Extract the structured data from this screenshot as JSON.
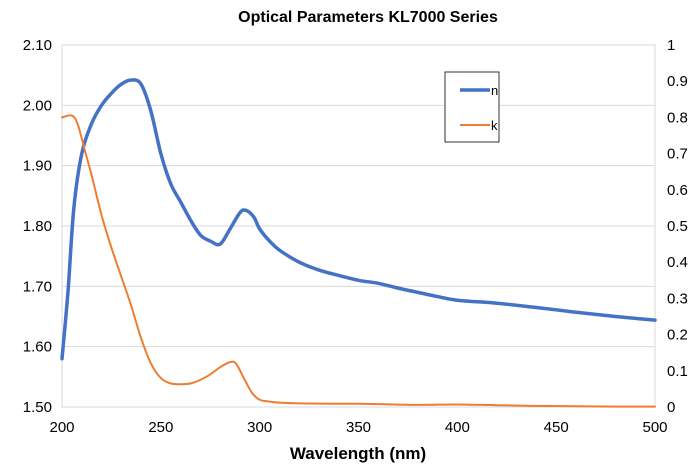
{
  "chart_data": {
    "type": "line",
    "title": "Optical Parameters  KL7000 Series",
    "xlabel": "Wavelength (nm)",
    "ylabel": "",
    "y2label": "",
    "xlim": [
      200,
      500
    ],
    "ylim": [
      1.5,
      2.1
    ],
    "y2lim": [
      0,
      1
    ],
    "x_ticks": [
      200,
      250,
      300,
      350,
      400,
      450,
      500
    ],
    "y_ticks": [
      "1.50",
      "1.60",
      "1.70",
      "1.80",
      "1.90",
      "2.00",
      "2.10"
    ],
    "y2_ticks": [
      "0",
      "0.1",
      "0.2",
      "0.3",
      "0.4",
      "0.5",
      "0.6",
      "0.7",
      "0.8",
      "0.9",
      "1"
    ],
    "grid": "horizontal",
    "legend_position": "top-right",
    "series": [
      {
        "name": "n",
        "axis": "left",
        "color": "#4472C4",
        "points": [
          [
            200,
            1.58
          ],
          [
            203,
            1.69
          ],
          [
            206,
            1.83
          ],
          [
            210,
            1.92
          ],
          [
            215,
            1.97
          ],
          [
            220,
            2.0
          ],
          [
            225,
            2.02
          ],
          [
            230,
            2.035
          ],
          [
            235,
            2.042
          ],
          [
            240,
            2.035
          ],
          [
            245,
            1.99
          ],
          [
            250,
            1.92
          ],
          [
            255,
            1.87
          ],
          [
            260,
            1.84
          ],
          [
            265,
            1.81
          ],
          [
            270,
            1.785
          ],
          [
            275,
            1.775
          ],
          [
            280,
            1.77
          ],
          [
            285,
            1.795
          ],
          [
            290,
            1.822
          ],
          [
            293,
            1.826
          ],
          [
            297,
            1.815
          ],
          [
            300,
            1.795
          ],
          [
            305,
            1.775
          ],
          [
            310,
            1.76
          ],
          [
            320,
            1.74
          ],
          [
            330,
            1.727
          ],
          [
            340,
            1.718
          ],
          [
            350,
            1.71
          ],
          [
            360,
            1.705
          ],
          [
            370,
            1.697
          ],
          [
            380,
            1.69
          ],
          [
            390,
            1.683
          ],
          [
            400,
            1.677
          ],
          [
            420,
            1.672
          ],
          [
            440,
            1.665
          ],
          [
            460,
            1.657
          ],
          [
            480,
            1.65
          ],
          [
            500,
            1.644
          ]
        ]
      },
      {
        "name": "k",
        "axis": "right",
        "color": "#ED7D31",
        "points": [
          [
            200,
            0.8
          ],
          [
            205,
            0.805
          ],
          [
            208,
            0.78
          ],
          [
            212,
            0.7
          ],
          [
            215,
            0.64
          ],
          [
            220,
            0.53
          ],
          [
            225,
            0.44
          ],
          [
            230,
            0.36
          ],
          [
            235,
            0.28
          ],
          [
            240,
            0.19
          ],
          [
            245,
            0.12
          ],
          [
            250,
            0.08
          ],
          [
            255,
            0.065
          ],
          [
            260,
            0.063
          ],
          [
            265,
            0.065
          ],
          [
            270,
            0.075
          ],
          [
            275,
            0.09
          ],
          [
            280,
            0.11
          ],
          [
            285,
            0.124
          ],
          [
            288,
            0.12
          ],
          [
            292,
            0.08
          ],
          [
            296,
            0.04
          ],
          [
            300,
            0.02
          ],
          [
            305,
            0.015
          ],
          [
            310,
            0.012
          ],
          [
            320,
            0.01
          ],
          [
            340,
            0.009
          ],
          [
            350,
            0.009
          ],
          [
            360,
            0.008
          ],
          [
            380,
            0.006
          ],
          [
            400,
            0.007
          ],
          [
            420,
            0.005
          ],
          [
            440,
            0.003
          ],
          [
            460,
            0.002
          ],
          [
            480,
            0.001
          ],
          [
            500,
            0.001
          ]
        ]
      }
    ]
  }
}
